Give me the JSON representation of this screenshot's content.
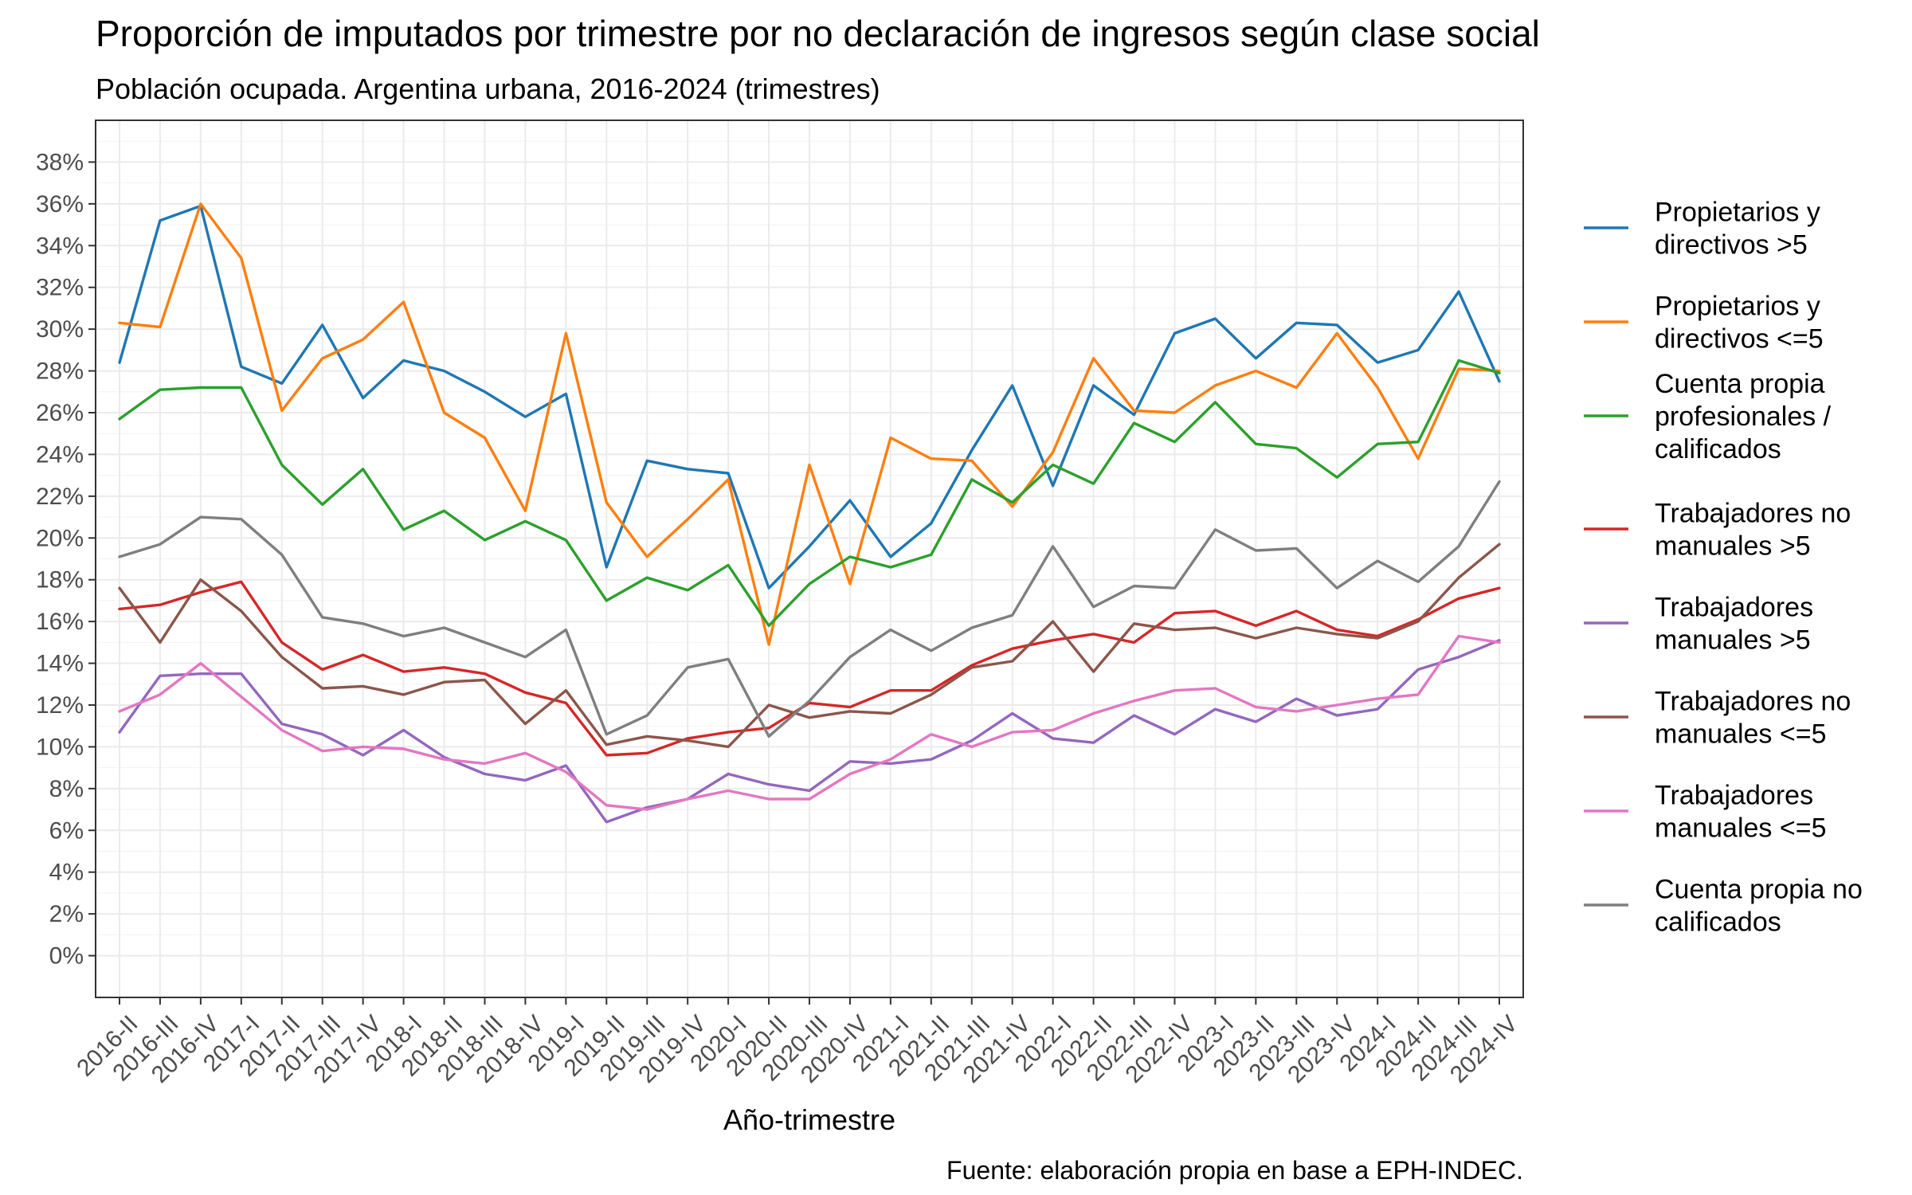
{
  "chart_data": {
    "type": "line",
    "title": "Proporción de imputados por trimestre por no declaración de ingresos según clase social",
    "subtitle": "Población ocupada. Argentina urbana, 2016-2024 (trimestres)",
    "xlabel": "Año-trimestre",
    "ylabel": "",
    "caption": "Fuente: elaboración propia en base a EPH-INDEC.",
    "ylim": [
      -0.02,
      0.4
    ],
    "y_ticks": [
      0,
      0.02,
      0.04,
      0.06,
      0.08,
      0.1,
      0.12,
      0.14,
      0.16,
      0.18,
      0.2,
      0.22,
      0.24,
      0.26,
      0.28,
      0.3,
      0.32,
      0.34,
      0.36,
      0.38
    ],
    "y_tick_labels": [
      "0%",
      "2%",
      "4%",
      "6%",
      "8%",
      "10%",
      "12%",
      "14%",
      "16%",
      "18%",
      "20%",
      "22%",
      "24%",
      "26%",
      "28%",
      "30%",
      "32%",
      "34%",
      "36%",
      "38%"
    ],
    "grid": true,
    "legend_position": "right",
    "categories": [
      "2016-II",
      "2016-III",
      "2016-IV",
      "2017-I",
      "2017-II",
      "2017-III",
      "2017-IV",
      "2018-I",
      "2018-II",
      "2018-III",
      "2018-IV",
      "2019-I",
      "2019-II",
      "2019-III",
      "2019-IV",
      "2020-I",
      "2020-II",
      "2020-III",
      "2020-IV",
      "2021-I",
      "2021-II",
      "2021-III",
      "2021-IV",
      "2022-I",
      "2022-II",
      "2022-III",
      "2022-IV",
      "2023-I",
      "2023-II",
      "2023-III",
      "2023-IV",
      "2024-I",
      "2024-II",
      "2024-III",
      "2024-IV"
    ],
    "series": [
      {
        "name": "Propietarios y directivos >5",
        "legend_lines": [
          "Propietarios y",
          "directivos >5"
        ],
        "color": "#1f77b4",
        "values": [
          0.284,
          0.352,
          0.359,
          0.282,
          0.274,
          0.302,
          0.267,
          0.285,
          0.28,
          0.27,
          0.258,
          0.269,
          0.186,
          0.237,
          0.233,
          0.231,
          0.176,
          0.196,
          0.218,
          0.191,
          0.207,
          0.242,
          0.273,
          0.225,
          0.273,
          0.259,
          0.298,
          0.305,
          0.286,
          0.303,
          0.302,
          0.284,
          0.29,
          0.318,
          0.275
        ]
      },
      {
        "name": "Propietarios y directivos <=5",
        "legend_lines": [
          "Propietarios y",
          "directivos <=5"
        ],
        "color": "#ff7f0e",
        "values": [
          0.303,
          0.301,
          0.36,
          0.334,
          0.261,
          0.286,
          0.295,
          0.313,
          0.26,
          0.248,
          0.213,
          0.298,
          0.217,
          0.191,
          0.209,
          0.228,
          0.149,
          0.235,
          0.178,
          0.248,
          0.238,
          0.237,
          0.215,
          0.241,
          0.286,
          0.261,
          0.26,
          0.273,
          0.28,
          0.272,
          0.298,
          0.272,
          0.238,
          0.281,
          0.28
        ]
      },
      {
        "name": "Cuenta propia profesionales / calificados",
        "legend_lines": [
          "Cuenta propia",
          "profesionales /",
          "calificados"
        ],
        "color": "#2ca02c",
        "values": [
          0.257,
          0.271,
          0.272,
          0.272,
          0.235,
          0.216,
          0.233,
          0.204,
          0.213,
          0.199,
          0.208,
          0.199,
          0.17,
          0.181,
          0.175,
          0.187,
          0.158,
          0.178,
          0.191,
          0.186,
          0.192,
          0.228,
          0.217,
          0.235,
          0.226,
          0.255,
          0.246,
          0.265,
          0.245,
          0.243,
          0.229,
          0.245,
          0.246,
          0.285,
          0.279
        ]
      },
      {
        "name": "Trabajadores no manuales >5",
        "legend_lines": [
          "Trabajadores no",
          "manuales >5"
        ],
        "color": "#d62728",
        "values": [
          0.166,
          0.168,
          0.174,
          0.179,
          0.15,
          0.137,
          0.144,
          0.136,
          0.138,
          0.135,
          0.126,
          0.121,
          0.096,
          0.097,
          0.104,
          0.107,
          0.109,
          0.121,
          0.119,
          0.127,
          0.127,
          0.139,
          0.147,
          0.151,
          0.154,
          0.15,
          0.164,
          0.165,
          0.158,
          0.165,
          0.156,
          0.153,
          0.161,
          0.171,
          0.176
        ]
      },
      {
        "name": "Trabajadores manuales >5",
        "legend_lines": [
          "Trabajadores",
          "manuales >5"
        ],
        "color": "#9467bd",
        "values": [
          0.107,
          0.134,
          0.135,
          0.135,
          0.111,
          0.106,
          0.096,
          0.108,
          0.095,
          0.087,
          0.084,
          0.091,
          0.064,
          0.071,
          0.075,
          0.087,
          0.082,
          0.079,
          0.093,
          0.092,
          0.094,
          0.103,
          0.116,
          0.104,
          0.102,
          0.115,
          0.106,
          0.118,
          0.112,
          0.123,
          0.115,
          0.118,
          0.137,
          0.143,
          0.151
        ]
      },
      {
        "name": "Trabajadores no manuales <=5",
        "legend_lines": [
          "Trabajadores no",
          "manuales <=5"
        ],
        "color": "#8c564b",
        "values": [
          0.176,
          0.15,
          0.18,
          0.165,
          0.143,
          0.128,
          0.129,
          0.125,
          0.131,
          0.132,
          0.111,
          0.127,
          0.101,
          0.105,
          0.103,
          0.1,
          0.12,
          0.114,
          0.117,
          0.116,
          0.125,
          0.138,
          0.141,
          0.16,
          0.136,
          0.159,
          0.156,
          0.157,
          0.152,
          0.157,
          0.154,
          0.152,
          0.16,
          0.181,
          0.197
        ]
      },
      {
        "name": "Trabajadores manuales <=5",
        "legend_lines": [
          "Trabajadores",
          "manuales <=5"
        ],
        "color": "#e377c2",
        "values": [
          0.117,
          0.125,
          0.14,
          0.124,
          0.108,
          0.098,
          0.1,
          0.099,
          0.094,
          0.092,
          0.097,
          0.088,
          0.072,
          0.07,
          0.075,
          0.079,
          0.075,
          0.075,
          0.087,
          0.094,
          0.106,
          0.1,
          0.107,
          0.108,
          0.116,
          0.122,
          0.127,
          0.128,
          0.119,
          0.117,
          0.12,
          0.123,
          0.125,
          0.153,
          0.15
        ]
      },
      {
        "name": "Cuenta propia no calificados",
        "legend_lines": [
          "Cuenta propia no",
          "calificados"
        ],
        "color": "#7f7f7f",
        "values": [
          0.191,
          0.197,
          0.21,
          0.209,
          0.192,
          0.162,
          0.159,
          0.153,
          0.157,
          0.15,
          0.143,
          0.156,
          0.106,
          0.115,
          0.138,
          0.142,
          0.105,
          0.122,
          0.143,
          0.156,
          0.146,
          0.157,
          0.163,
          0.196,
          0.167,
          0.177,
          0.176,
          0.204,
          0.194,
          0.195,
          0.176,
          0.189,
          0.179,
          0.196,
          0.227
        ]
      }
    ]
  }
}
